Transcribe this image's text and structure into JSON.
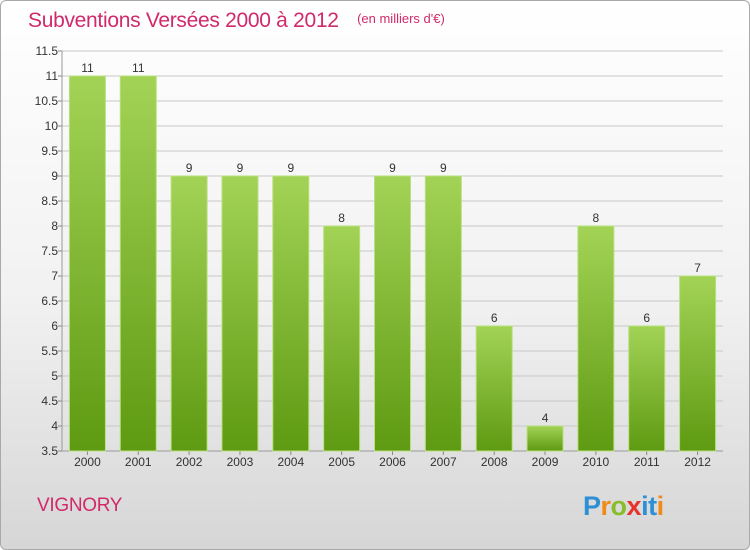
{
  "title": "Subventions Versées 2000 à 2012",
  "unit_note": "(en milliers d'€)",
  "commune": "VIGNORY",
  "logo_text": "Proxiti",
  "colors": {
    "title": "#d02a6a",
    "bar_light": "#9ccf4c",
    "bar_dark": "#5e9a12",
    "grid": "#c8c8c8",
    "axis_text": "#333333"
  },
  "chart_data": {
    "type": "bar",
    "title": "Subventions Versées 2000 à 2012",
    "ylabel": "(en milliers d'€)",
    "xlabel": "",
    "ylim": [
      3.5,
      11.5
    ],
    "ytick_step": 0.5,
    "ytick_labels": [
      "3.5",
      "4",
      "4.5",
      "5",
      "5.5",
      "6",
      "6.5",
      "7",
      "7.5",
      "8",
      "8.5",
      "9",
      "9.5",
      "10",
      "10.5",
      "11",
      "11.5"
    ],
    "grid": true,
    "categories": [
      "2000",
      "2001",
      "2002",
      "2003",
      "2004",
      "2005",
      "2006",
      "2007",
      "2008",
      "2009",
      "2010",
      "2011",
      "2012"
    ],
    "values": [
      11,
      11,
      9,
      9,
      9,
      8,
      9,
      9,
      6,
      4,
      8,
      6,
      7
    ]
  }
}
